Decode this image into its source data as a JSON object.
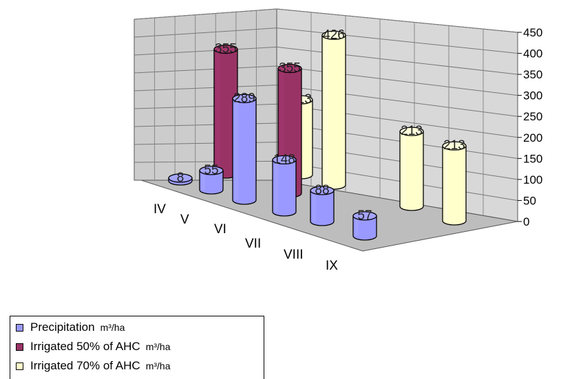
{
  "chart_data": {
    "type": "bar",
    "style": "3d-cylinder",
    "categories": [
      "IV",
      "V",
      "VI",
      "VII",
      "VIII",
      "IX"
    ],
    "series": [
      {
        "name": "Precipitation",
        "unit": "m³/ha",
        "color": "#9999ff",
        "values": [
          8,
          55,
          289,
          148,
          88,
          57
        ]
      },
      {
        "name": "Irrigated 50% of  AHC",
        "unit": "m³/ha",
        "color": "#993366",
        "values": [
          355,
          null,
          355,
          null,
          null,
          null
        ]
      },
      {
        "name": "Irrigated 70% of AHC",
        "unit": "m³/ha",
        "color": "#ffffcc",
        "values": [
          null,
          213,
          426,
          null,
          213,
          213
        ]
      }
    ],
    "y_ticks": [
      0,
      50,
      100,
      150,
      200,
      250,
      300,
      350,
      400,
      450
    ],
    "ylim": [
      0,
      450
    ],
    "grid": true,
    "legend_position": "bottom-left"
  }
}
